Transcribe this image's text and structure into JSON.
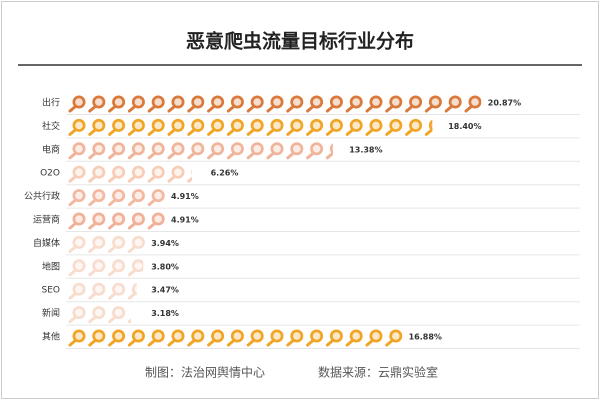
{
  "chart_data": {
    "type": "pictogram",
    "title": "恶意爬虫流量目标行业分布",
    "categories": [
      "出行",
      "社交",
      "电商",
      "O2O",
      "公共行政",
      "运营商",
      "自媒体",
      "地图",
      "SEO",
      "新闻",
      "其他"
    ],
    "values": [
      20.87,
      18.4,
      13.38,
      6.26,
      4.91,
      4.91,
      3.94,
      3.8,
      3.47,
      3.18,
      16.88
    ],
    "value_labels": [
      "20.87%",
      "18.40%",
      "13.38%",
      "6.26%",
      "4.91%",
      "4.91%",
      "3.94%",
      "3.80%",
      "3.47%",
      "3.18%",
      "16.88%"
    ],
    "colors": [
      "#d97a3c",
      "#f0a526",
      "#f0b49a",
      "#f7cdb8",
      "#f3b9a0",
      "#f1b198",
      "#f8dccd",
      "#f8dccd",
      "#f8dccd",
      "#f8dccd",
      "#f0a526"
    ],
    "footer": [
      "制图：法治网舆情中心",
      "数据来源：云鼎实验室"
    ]
  }
}
